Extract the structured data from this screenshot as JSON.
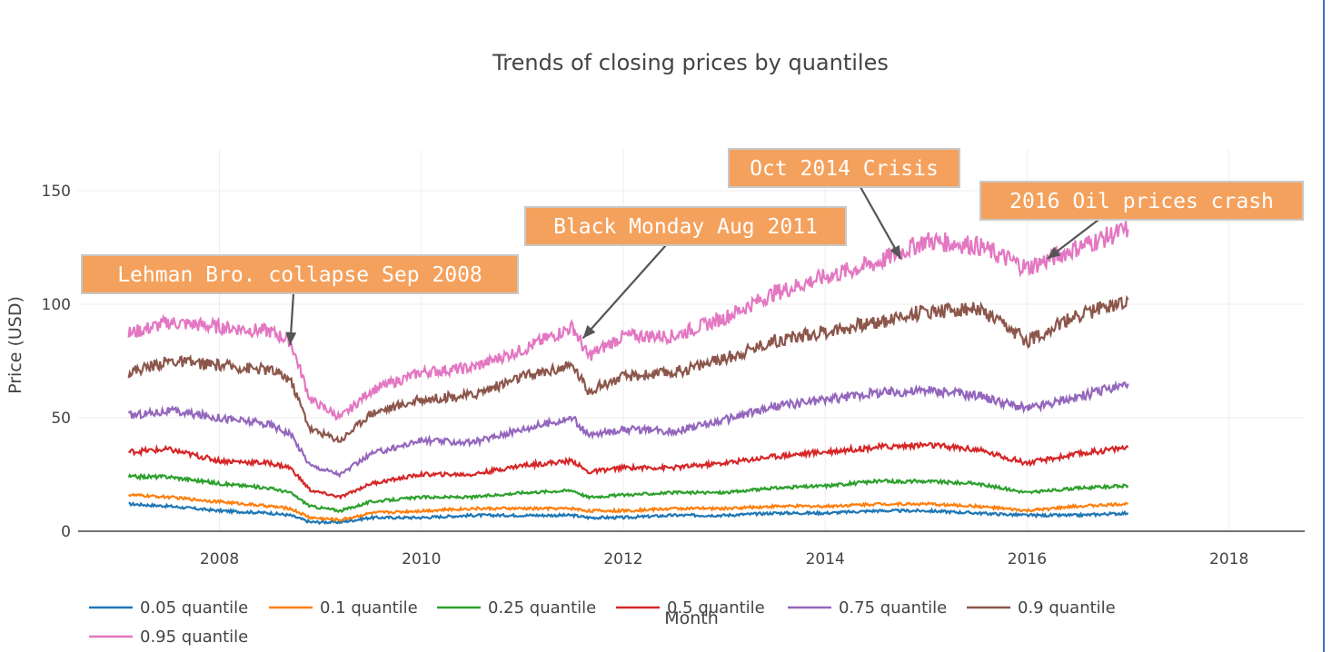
{
  "chart_data": {
    "type": "line",
    "title": "Trends of closing prices by quantiles",
    "xlabel": "Month",
    "ylabel": "Price (USD)",
    "xlim": [
      2006.6,
      2018.75
    ],
    "ylim": [
      0,
      168
    ],
    "x_ticks": [
      2008,
      2010,
      2012,
      2014,
      2016,
      2018
    ],
    "y_ticks": [
      0,
      50,
      100,
      150
    ],
    "grid": true,
    "legend_position": "bottom-left",
    "annotation_color": "#f4a15d",
    "series": [
      {
        "name": "0.05 quantile",
        "color": "#1f77b4",
        "x": [
          2007.1,
          2007.5,
          2008.0,
          2008.5,
          2008.7,
          2008.9,
          2009.2,
          2009.5,
          2010.0,
          2010.5,
          2011.0,
          2011.5,
          2011.65,
          2012.0,
          2012.5,
          2013.0,
          2013.5,
          2014.0,
          2014.5,
          2015.0,
          2015.5,
          2016.0,
          2016.5,
          2017.0
        ],
        "values": [
          12,
          11,
          9,
          8,
          7,
          4,
          4,
          6,
          6,
          7,
          7,
          7,
          6,
          6,
          7,
          7,
          8,
          8,
          9,
          9,
          8,
          7,
          7,
          8
        ]
      },
      {
        "name": "0.1 quantile",
        "color": "#ff7f0e",
        "x": [
          2007.1,
          2007.5,
          2008.0,
          2008.5,
          2008.7,
          2008.9,
          2009.2,
          2009.5,
          2010.0,
          2010.5,
          2011.0,
          2011.5,
          2011.65,
          2012.0,
          2012.5,
          2013.0,
          2013.5,
          2014.0,
          2014.5,
          2015.0,
          2015.5,
          2016.0,
          2016.5,
          2017.0
        ],
        "values": [
          16,
          15,
          13,
          11,
          10,
          6,
          5,
          8,
          9,
          10,
          10,
          10,
          9,
          9,
          10,
          10,
          11,
          11,
          12,
          12,
          11,
          9,
          11,
          12
        ]
      },
      {
        "name": "0.25 quantile",
        "color": "#2ca02c",
        "x": [
          2007.1,
          2007.5,
          2008.0,
          2008.5,
          2008.7,
          2008.9,
          2009.2,
          2009.5,
          2010.0,
          2010.5,
          2011.0,
          2011.5,
          2011.65,
          2012.0,
          2012.5,
          2013.0,
          2013.5,
          2014.0,
          2014.5,
          2015.0,
          2015.5,
          2016.0,
          2016.5,
          2017.0
        ],
        "values": [
          24,
          24,
          21,
          19,
          17,
          11,
          9,
          13,
          15,
          15,
          17,
          18,
          15,
          16,
          17,
          17,
          19,
          20,
          22,
          22,
          21,
          17,
          19,
          20
        ]
      },
      {
        "name": "0.5 quantile",
        "color": "#d62728",
        "x": [
          2007.1,
          2007.5,
          2008.0,
          2008.5,
          2008.7,
          2008.9,
          2009.2,
          2009.5,
          2010.0,
          2010.5,
          2011.0,
          2011.5,
          2011.65,
          2012.0,
          2012.5,
          2013.0,
          2013.5,
          2014.0,
          2014.5,
          2015.0,
          2015.5,
          2016.0,
          2016.5,
          2017.0
        ],
        "values": [
          35,
          36,
          31,
          30,
          28,
          18,
          15,
          21,
          25,
          25,
          29,
          31,
          26,
          28,
          28,
          30,
          33,
          35,
          37,
          38,
          36,
          30,
          34,
          37
        ]
      },
      {
        "name": "0.75 quantile",
        "color": "#9467bd",
        "x": [
          2007.1,
          2007.5,
          2008.0,
          2008.5,
          2008.7,
          2008.9,
          2009.2,
          2009.5,
          2010.0,
          2010.5,
          2011.0,
          2011.5,
          2011.65,
          2012.0,
          2012.5,
          2013.0,
          2013.5,
          2014.0,
          2014.5,
          2015.0,
          2015.5,
          2016.0,
          2016.5,
          2017.0
        ],
        "values": [
          51,
          53,
          50,
          47,
          43,
          29,
          25,
          34,
          40,
          39,
          45,
          50,
          42,
          45,
          44,
          49,
          55,
          58,
          61,
          62,
          60,
          54,
          59,
          65
        ]
      },
      {
        "name": "0.9 quantile",
        "color": "#8c564b",
        "x": [
          2007.1,
          2007.5,
          2008.0,
          2008.5,
          2008.7,
          2008.9,
          2009.2,
          2009.5,
          2010.0,
          2010.5,
          2011.0,
          2011.5,
          2011.65,
          2012.0,
          2012.5,
          2013.0,
          2013.5,
          2014.0,
          2014.5,
          2015.0,
          2015.5,
          2016.0,
          2016.5,
          2017.0
        ],
        "values": [
          70,
          75,
          73,
          71,
          67,
          45,
          40,
          52,
          58,
          60,
          68,
          73,
          62,
          68,
          70,
          76,
          84,
          88,
          92,
          97,
          98,
          84,
          95,
          102
        ]
      },
      {
        "name": "0.95 quantile",
        "color": "#e377c2",
        "x": [
          2007.1,
          2007.5,
          2008.0,
          2008.5,
          2008.7,
          2008.9,
          2009.2,
          2009.5,
          2010.0,
          2010.5,
          2011.0,
          2011.5,
          2011.65,
          2012.0,
          2012.5,
          2013.0,
          2013.5,
          2014.0,
          2014.5,
          2015.0,
          2015.5,
          2016.0,
          2016.5,
          2017.0
        ],
        "values": [
          87,
          92,
          90,
          88,
          84,
          58,
          50,
          62,
          70,
          72,
          80,
          90,
          77,
          86,
          86,
          94,
          105,
          112,
          118,
          128,
          126,
          116,
          125,
          133
        ]
      }
    ],
    "annotations": [
      {
        "text": "Lehman Bro. collapse Sep 2008",
        "x": 2008.7,
        "y": 82
      },
      {
        "text": "Black Monday Aug 2011",
        "x": 2011.6,
        "y": 85
      },
      {
        "text": "Oct 2014 Crisis",
        "x": 2014.75,
        "y": 120
      },
      {
        "text": "2016 Oil prices crash",
        "x": 2016.2,
        "y": 120
      }
    ]
  }
}
